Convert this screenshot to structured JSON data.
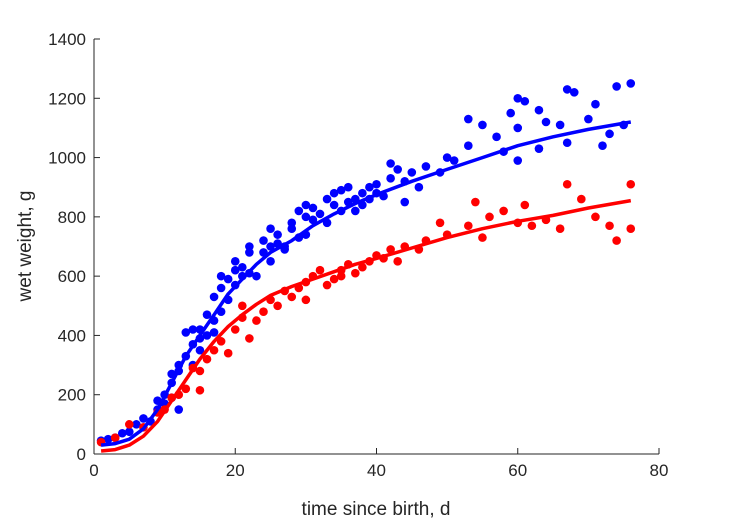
{
  "chart_data": {
    "type": "scatter",
    "title": "",
    "xlabel": "time since birth, d",
    "ylabel": "wet weight, g",
    "xlim": [
      0,
      80
    ],
    "ylim": [
      0,
      1400
    ],
    "xticks": [
      0,
      20,
      40,
      60,
      80
    ],
    "yticks": [
      0,
      200,
      400,
      600,
      800,
      1000,
      1200,
      1400
    ],
    "grid": false,
    "legend": "none",
    "series": [
      {
        "kind": "points",
        "color": "#0000ff",
        "points": [
          [
            1,
            45
          ],
          [
            2,
            50
          ],
          [
            3,
            55
          ],
          [
            4,
            70
          ],
          [
            5,
            75
          ],
          [
            6,
            100
          ],
          [
            7,
            120
          ],
          [
            8,
            110
          ],
          [
            9,
            180
          ],
          [
            9,
            150
          ],
          [
            10,
            200
          ],
          [
            10,
            170
          ],
          [
            11,
            270
          ],
          [
            11,
            240
          ],
          [
            11,
            190
          ],
          [
            12,
            150
          ],
          [
            12,
            280
          ],
          [
            12,
            300
          ],
          [
            13,
            330
          ],
          [
            13,
            410
          ],
          [
            14,
            370
          ],
          [
            14,
            420
          ],
          [
            14,
            300
          ],
          [
            15,
            350
          ],
          [
            15,
            390
          ],
          [
            15,
            420
          ],
          [
            16,
            470
          ],
          [
            16,
            400
          ],
          [
            17,
            450
          ],
          [
            17,
            530
          ],
          [
            17,
            410
          ],
          [
            18,
            560
          ],
          [
            18,
            600
          ],
          [
            18,
            480
          ],
          [
            19,
            590
          ],
          [
            19,
            520
          ],
          [
            20,
            620
          ],
          [
            20,
            650
          ],
          [
            20,
            570
          ],
          [
            21,
            600
          ],
          [
            21,
            630
          ],
          [
            22,
            700
          ],
          [
            22,
            680
          ],
          [
            22,
            610
          ],
          [
            23,
            600
          ],
          [
            24,
            680
          ],
          [
            24,
            720
          ],
          [
            25,
            700
          ],
          [
            25,
            760
          ],
          [
            25,
            650
          ],
          [
            26,
            710
          ],
          [
            26,
            740
          ],
          [
            27,
            700
          ],
          [
            27,
            690
          ],
          [
            28,
            780
          ],
          [
            28,
            760
          ],
          [
            29,
            730
          ],
          [
            29,
            820
          ],
          [
            30,
            740
          ],
          [
            30,
            800
          ],
          [
            30,
            840
          ],
          [
            31,
            790
          ],
          [
            31,
            830
          ],
          [
            32,
            810
          ],
          [
            33,
            860
          ],
          [
            33,
            780
          ],
          [
            34,
            880
          ],
          [
            34,
            840
          ],
          [
            35,
            820
          ],
          [
            35,
            890
          ],
          [
            36,
            850
          ],
          [
            36,
            900
          ],
          [
            37,
            820
          ],
          [
            37,
            860
          ],
          [
            38,
            840
          ],
          [
            38,
            880
          ],
          [
            39,
            900
          ],
          [
            39,
            860
          ],
          [
            40,
            880
          ],
          [
            40,
            910
          ],
          [
            41,
            870
          ],
          [
            42,
            980
          ],
          [
            42,
            930
          ],
          [
            43,
            960
          ],
          [
            44,
            920
          ],
          [
            44,
            850
          ],
          [
            45,
            950
          ],
          [
            46,
            900
          ],
          [
            47,
            970
          ],
          [
            49,
            950
          ],
          [
            50,
            1000
          ],
          [
            51,
            990
          ],
          [
            53,
            1130
          ],
          [
            53,
            1040
          ],
          [
            55,
            1110
          ],
          [
            57,
            1070
          ],
          [
            58,
            1020
          ],
          [
            59,
            1150
          ],
          [
            60,
            1200
          ],
          [
            60,
            1100
          ],
          [
            60,
            990
          ],
          [
            61,
            1190
          ],
          [
            63,
            1160
          ],
          [
            63,
            1030
          ],
          [
            64,
            1120
          ],
          [
            66,
            1110
          ],
          [
            67,
            1230
          ],
          [
            67,
            1050
          ],
          [
            68,
            1220
          ],
          [
            70,
            1130
          ],
          [
            71,
            1180
          ],
          [
            72,
            1040
          ],
          [
            73,
            1080
          ],
          [
            74,
            1240
          ],
          [
            75,
            1110
          ],
          [
            76,
            1250
          ]
        ]
      },
      {
        "kind": "points",
        "color": "#ff0000",
        "points": [
          [
            1,
            40
          ],
          [
            3,
            55
          ],
          [
            5,
            100
          ],
          [
            7,
            90
          ],
          [
            9,
            140
          ],
          [
            10,
            150
          ],
          [
            11,
            190
          ],
          [
            12,
            200
          ],
          [
            13,
            220
          ],
          [
            14,
            290
          ],
          [
            15,
            280
          ],
          [
            15,
            215
          ],
          [
            16,
            320
          ],
          [
            17,
            350
          ],
          [
            18,
            380
          ],
          [
            19,
            340
          ],
          [
            20,
            420
          ],
          [
            21,
            460
          ],
          [
            21,
            500
          ],
          [
            22,
            390
          ],
          [
            23,
            450
          ],
          [
            24,
            480
          ],
          [
            25,
            520
          ],
          [
            26,
            500
          ],
          [
            27,
            550
          ],
          [
            28,
            530
          ],
          [
            29,
            560
          ],
          [
            30,
            580
          ],
          [
            30,
            520
          ],
          [
            31,
            600
          ],
          [
            32,
            620
          ],
          [
            33,
            570
          ],
          [
            34,
            590
          ],
          [
            35,
            620
          ],
          [
            35,
            600
          ],
          [
            36,
            640
          ],
          [
            37,
            610
          ],
          [
            38,
            630
          ],
          [
            39,
            650
          ],
          [
            40,
            670
          ],
          [
            41,
            660
          ],
          [
            42,
            690
          ],
          [
            43,
            650
          ],
          [
            44,
            700
          ],
          [
            46,
            690
          ],
          [
            47,
            720
          ],
          [
            49,
            780
          ],
          [
            50,
            740
          ],
          [
            53,
            770
          ],
          [
            54,
            850
          ],
          [
            55,
            730
          ],
          [
            56,
            800
          ],
          [
            58,
            820
          ],
          [
            60,
            780
          ],
          [
            61,
            840
          ],
          [
            62,
            770
          ],
          [
            64,
            790
          ],
          [
            66,
            760
          ],
          [
            67,
            910
          ],
          [
            69,
            860
          ],
          [
            71,
            800
          ],
          [
            73,
            770
          ],
          [
            74,
            720
          ],
          [
            76,
            910
          ],
          [
            76,
            760
          ]
        ]
      },
      {
        "kind": "line",
        "color": "#0000ff",
        "points": [
          [
            1,
            30
          ],
          [
            3,
            35
          ],
          [
            5,
            50
          ],
          [
            7,
            85
          ],
          [
            9,
            150
          ],
          [
            11,
            240
          ],
          [
            13,
            330
          ],
          [
            15,
            400
          ],
          [
            17,
            470
          ],
          [
            19,
            540
          ],
          [
            21,
            590
          ],
          [
            23,
            640
          ],
          [
            25,
            680
          ],
          [
            28,
            720
          ],
          [
            31,
            770
          ],
          [
            34,
            810
          ],
          [
            37,
            845
          ],
          [
            40,
            875
          ],
          [
            45,
            920
          ],
          [
            50,
            960
          ],
          [
            55,
            1000
          ],
          [
            60,
            1040
          ],
          [
            65,
            1070
          ],
          [
            70,
            1095
          ],
          [
            76,
            1120
          ]
        ]
      },
      {
        "kind": "line",
        "color": "#ff0000",
        "points": [
          [
            1,
            10
          ],
          [
            3,
            15
          ],
          [
            5,
            30
          ],
          [
            7,
            60
          ],
          [
            9,
            110
          ],
          [
            11,
            180
          ],
          [
            13,
            250
          ],
          [
            15,
            320
          ],
          [
            17,
            380
          ],
          [
            19,
            430
          ],
          [
            21,
            470
          ],
          [
            23,
            505
          ],
          [
            25,
            535
          ],
          [
            28,
            565
          ],
          [
            31,
            590
          ],
          [
            34,
            615
          ],
          [
            37,
            640
          ],
          [
            40,
            660
          ],
          [
            45,
            695
          ],
          [
            50,
            730
          ],
          [
            55,
            760
          ],
          [
            60,
            785
          ],
          [
            65,
            805
          ],
          [
            70,
            830
          ],
          [
            76,
            855
          ]
        ]
      }
    ]
  }
}
